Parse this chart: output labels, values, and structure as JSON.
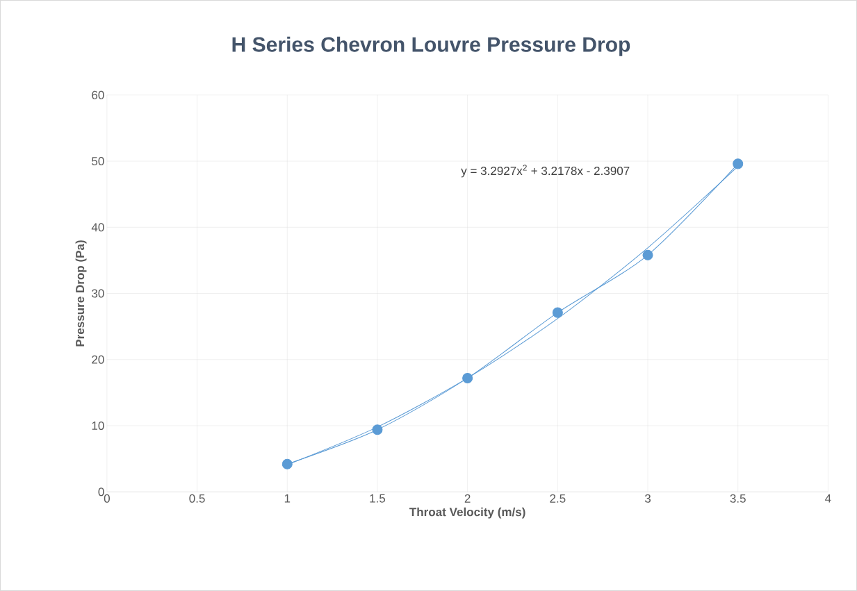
{
  "chart_data": {
    "type": "line",
    "title": "H Series Chevron Louvre Pressure Drop",
    "xlabel": "Throat Velocity (m/s)",
    "ylabel": "Pressure Drop (Pa)",
    "xlim": [
      0,
      4
    ],
    "xticks": [
      0,
      0.5,
      1,
      1.5,
      2,
      2.5,
      3,
      3.5,
      4
    ],
    "ylim": [
      0,
      60
    ],
    "yticks": [
      0,
      10,
      20,
      30,
      40,
      50,
      60
    ],
    "grid": true,
    "series": [
      {
        "color": "#5b9bd5",
        "x": [
          1,
          1.5,
          2,
          2.5,
          3,
          3.5
        ],
        "values": [
          4.2,
          9.4,
          17.2,
          27.1,
          35.8,
          49.6
        ],
        "marker": "circle"
      },
      {
        "color": "#5b9bd5",
        "x": [
          1,
          1.5,
          2,
          2.5,
          3,
          3.5
        ],
        "values": [
          4.1,
          9.8,
          17.2,
          26.2,
          36.9,
          49.2
        ],
        "marker": "none"
      }
    ],
    "annotations": [
      "y = 3.2927x$^{2}$ + 3.2178x - 2.3907"
    ]
  }
}
